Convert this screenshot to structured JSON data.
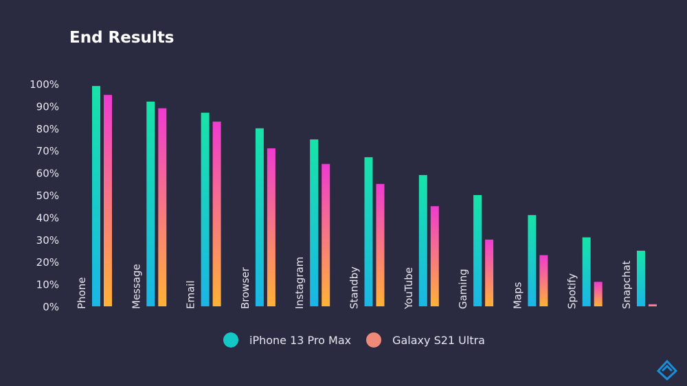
{
  "title": "End Results",
  "chart_data": {
    "type": "bar",
    "title": "End Results",
    "categories": [
      "Phone",
      "Message",
      "Email",
      "Browser",
      "Instagram",
      "Standby",
      "YouTube",
      "Gaming",
      "Maps",
      "Spotify",
      "Snapchat"
    ],
    "series": [
      {
        "name": "iPhone 13 Pro Max",
        "values": [
          99,
          92,
          87,
          80,
          75,
          67,
          59,
          50,
          41,
          31,
          25
        ],
        "color_top": "#18e3a8",
        "color_bottom": "#1bb6e6"
      },
      {
        "name": "Galaxy S21 Ultra",
        "values": [
          95,
          89,
          83,
          71,
          64,
          55,
          45,
          30,
          23,
          11,
          1
        ],
        "color_top": "#ef3bd0",
        "color_bottom": "#ffb236"
      }
    ],
    "ylim": [
      0,
      100
    ],
    "yticks": [
      "0%",
      "10%",
      "20%",
      "30%",
      "40%",
      "50%",
      "60%",
      "70%",
      "80%",
      "90%",
      "100%"
    ],
    "grid": false,
    "legend_position": "bottom"
  },
  "legend": [
    {
      "label": "iPhone 13 Pro Max",
      "color": "#14c8c8"
    },
    {
      "label": "Galaxy S21 Ultra",
      "color": "#f08a78"
    }
  ],
  "colors": {
    "background": "#2a2a40",
    "text": "#e8e8f0",
    "accent": "#1a8fd8"
  },
  "logo_icon": "brand-logo-icon"
}
